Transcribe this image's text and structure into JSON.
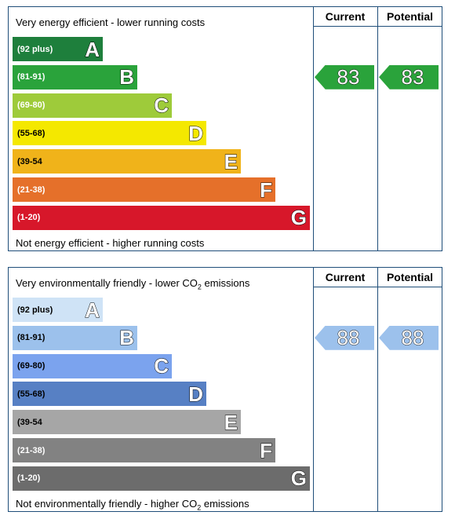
{
  "chart_data": [
    {
      "type": "bar",
      "top_caption": "Very energy efficient - lower running costs",
      "bottom_caption": "Not energy efficient - higher running costs",
      "columns": [
        "Current",
        "Potential"
      ],
      "bands": [
        {
          "range": "(92 plus)",
          "letter": "A",
          "color": "#1e7f3c",
          "textcolor": "#ffffff"
        },
        {
          "range": "(81-91)",
          "letter": "B",
          "color": "#2aa33b",
          "textcolor": "#ffffff"
        },
        {
          "range": "(69-80)",
          "letter": "C",
          "color": "#9ecb3a",
          "textcolor": "#ffffff"
        },
        {
          "range": "(55-68)",
          "letter": "D",
          "color": "#f4e800",
          "textcolor": "#000000"
        },
        {
          "range": "(39-54",
          "letter": "E",
          "color": "#f0b31a",
          "textcolor": "#000000"
        },
        {
          "range": "(21-38)",
          "letter": "F",
          "color": "#e5702a",
          "textcolor": "#ffffff"
        },
        {
          "range": "(1-20)",
          "letter": "G",
          "color": "#d7172a",
          "textcolor": "#ffffff"
        }
      ],
      "current": {
        "value": 83,
        "band": "B",
        "color": "#2aa33b"
      },
      "potential": {
        "value": 83,
        "band": "B",
        "color": "#2aa33b"
      }
    },
    {
      "type": "bar",
      "top_caption": "Very environmentally friendly - lower CO",
      "top_caption_sub": "2",
      "top_caption_end": " emissions",
      "bottom_caption": "Not environmentally friendly - higher CO",
      "bottom_caption_sub": "2",
      "bottom_caption_end": " emissions",
      "columns": [
        "Current",
        "Potential"
      ],
      "bands": [
        {
          "range": "(92 plus)",
          "letter": "A",
          "color": "#cfe3f6",
          "textcolor": "#000000"
        },
        {
          "range": "(81-91)",
          "letter": "B",
          "color": "#9cc1ec",
          "textcolor": "#000000"
        },
        {
          "range": "(69-80)",
          "letter": "C",
          "color": "#7ba3ee",
          "textcolor": "#000000"
        },
        {
          "range": "(55-68)",
          "letter": "D",
          "color": "#5780c4",
          "textcolor": "#000000"
        },
        {
          "range": "(39-54",
          "letter": "E",
          "color": "#a6a6a6",
          "textcolor": "#000000"
        },
        {
          "range": "(21-38)",
          "letter": "F",
          "color": "#828282",
          "textcolor": "#ffffff"
        },
        {
          "range": "(1-20)",
          "letter": "G",
          "color": "#6c6c6c",
          "textcolor": "#ffffff"
        }
      ],
      "current": {
        "value": 88,
        "band": "B",
        "color": "#9cc1ec"
      },
      "potential": {
        "value": 88,
        "band": "B",
        "color": "#9cc1ec"
      }
    }
  ]
}
